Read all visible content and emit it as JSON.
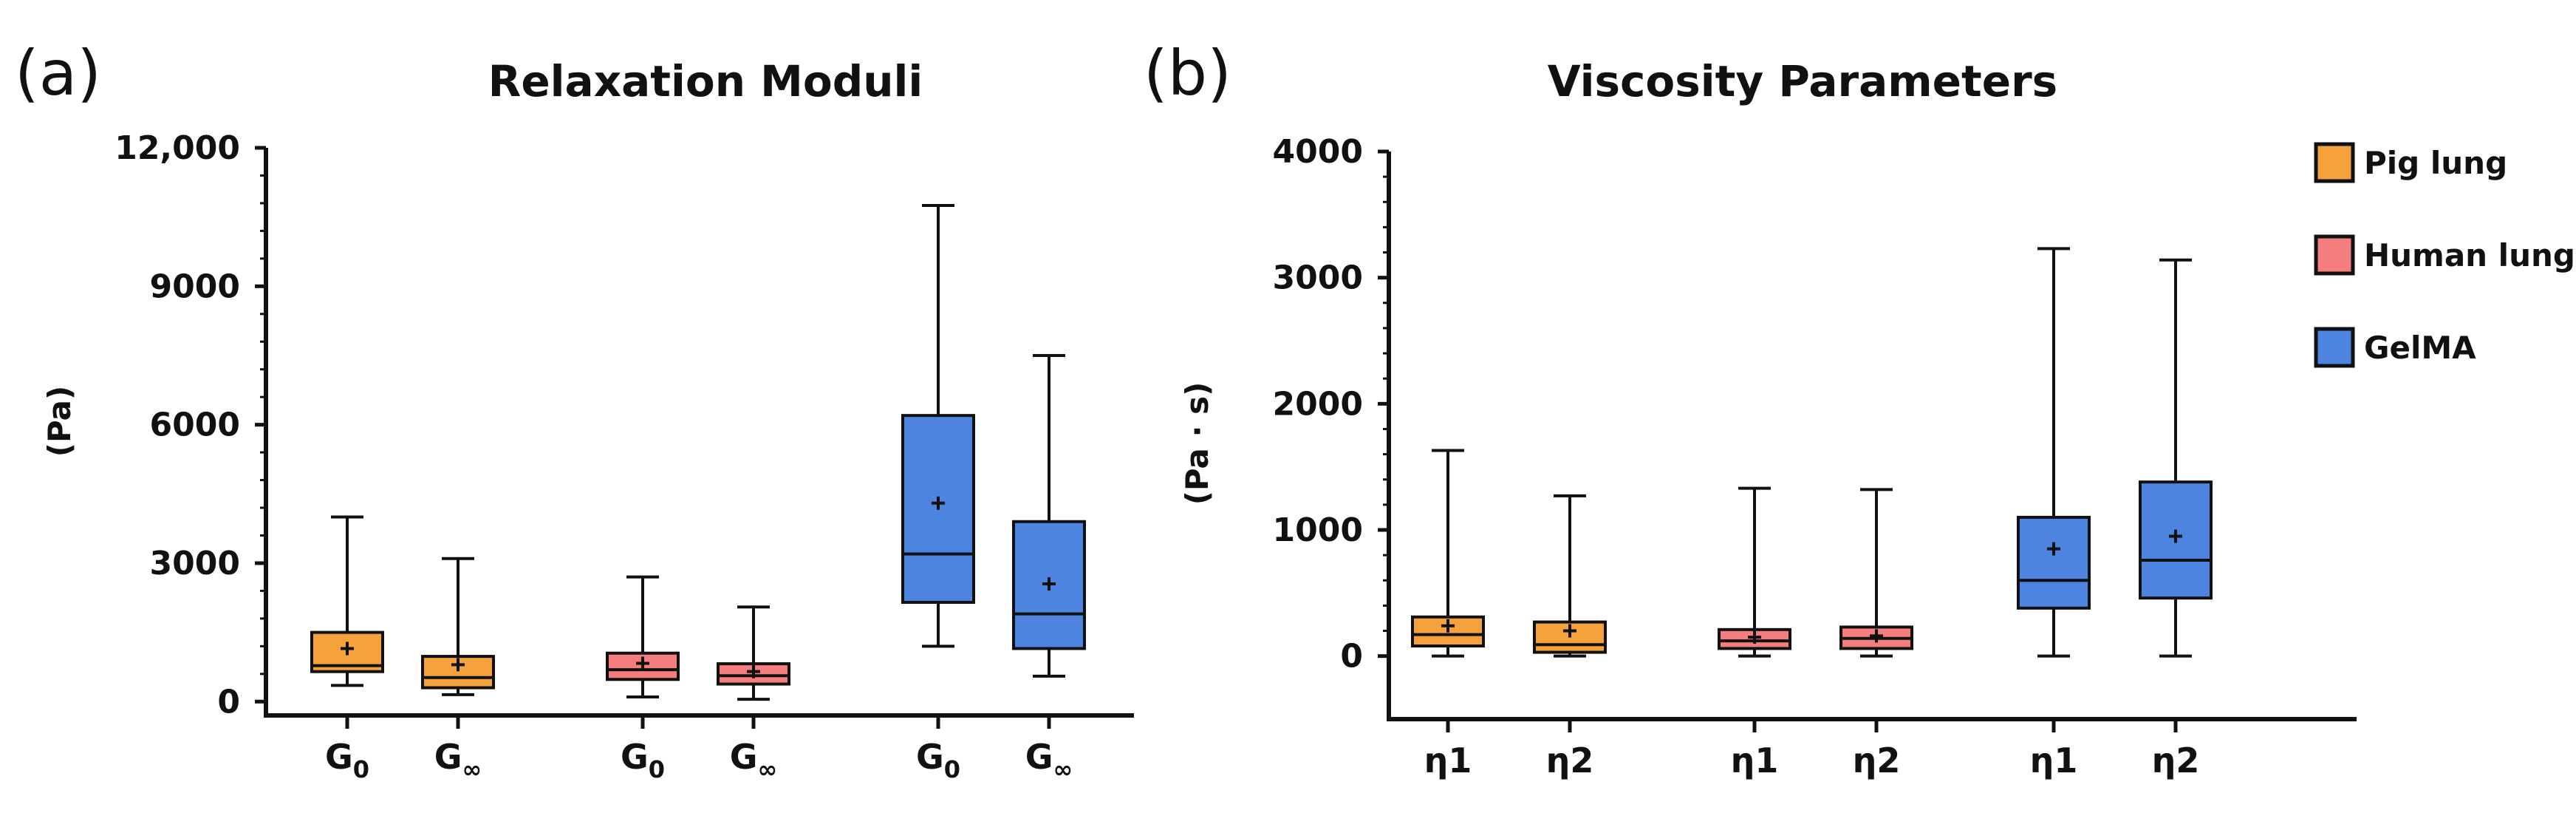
{
  "panel_labels": {
    "a": "(a)",
    "b": "(b)"
  },
  "legend": [
    {
      "name": "Pig lung",
      "color": "#F5A23C"
    },
    {
      "name": "Human lung",
      "color": "#F47E7E"
    },
    {
      "name": "GelMA",
      "color": "#4C84E0"
    }
  ],
  "chart_data": [
    {
      "type": "box",
      "title": "Relaxation Moduli",
      "xlabel": "",
      "ylabel": "(Pa)",
      "ylim": [
        -300,
        12000
      ],
      "yticks": [
        0,
        3000,
        6000,
        9000,
        12000
      ],
      "ytick_labels": [
        "0",
        "3000",
        "6000",
        "9000",
        "12,000"
      ],
      "boxes": [
        {
          "label_main": "G",
          "label_sub": "0",
          "group": "Pig lung",
          "color": "#F5A23C",
          "min": 350,
          "q1": 650,
          "median": 780,
          "q3": 1500,
          "max": 4000,
          "mean": 1150
        },
        {
          "label_main": "G",
          "label_sub": "∞",
          "group": "Pig lung",
          "color": "#F5A23C",
          "min": 150,
          "q1": 300,
          "median": 520,
          "q3": 980,
          "max": 3100,
          "mean": 800
        },
        {
          "label_main": "G",
          "label_sub": "0",
          "group": "Human lung",
          "color": "#F47E7E",
          "min": 100,
          "q1": 480,
          "median": 690,
          "q3": 1050,
          "max": 2700,
          "mean": 830
        },
        {
          "label_main": "G",
          "label_sub": "∞",
          "group": "Human lung",
          "color": "#F47E7E",
          "min": 50,
          "q1": 380,
          "median": 560,
          "q3": 820,
          "max": 2050,
          "mean": 650
        },
        {
          "label_main": "G",
          "label_sub": "0",
          "group": "GelMA",
          "color": "#4C84E0",
          "min": 1200,
          "q1": 2150,
          "median": 3200,
          "q3": 6200,
          "max": 10750,
          "mean": 4300
        },
        {
          "label_main": "G",
          "label_sub": "∞",
          "group": "GelMA",
          "color": "#4C84E0",
          "min": 550,
          "q1": 1150,
          "median": 1900,
          "q3": 3900,
          "max": 7500,
          "mean": 2550
        }
      ]
    },
    {
      "type": "box",
      "title": "Viscosity Parameters",
      "xlabel": "",
      "ylabel": "(Pa · s)",
      "ylim": [
        -500,
        4000
      ],
      "yticks": [
        0,
        1000,
        2000,
        3000,
        4000
      ],
      "ytick_labels": [
        "0",
        "1000",
        "2000",
        "3000",
        "4000"
      ],
      "boxes": [
        {
          "label_main": "η1",
          "label_sub": "",
          "group": "Pig lung",
          "color": "#F5A23C",
          "min": 0,
          "q1": 80,
          "median": 170,
          "q3": 310,
          "max": 1630,
          "mean": 240
        },
        {
          "label_main": "η2",
          "label_sub": "",
          "group": "Pig lung",
          "color": "#F5A23C",
          "min": 0,
          "q1": 30,
          "median": 90,
          "q3": 270,
          "max": 1270,
          "mean": 200
        },
        {
          "label_main": "η1",
          "label_sub": "",
          "group": "Human lung",
          "color": "#F47E7E",
          "min": 0,
          "q1": 60,
          "median": 120,
          "q3": 210,
          "max": 1330,
          "mean": 150
        },
        {
          "label_main": "η2",
          "label_sub": "",
          "group": "Human lung",
          "color": "#F47E7E",
          "min": 0,
          "q1": 60,
          "median": 140,
          "q3": 230,
          "max": 1320,
          "mean": 160
        },
        {
          "label_main": "η1",
          "label_sub": "",
          "group": "GelMA",
          "color": "#4C84E0",
          "min": 0,
          "q1": 380,
          "median": 600,
          "q3": 1100,
          "max": 3230,
          "mean": 850
        },
        {
          "label_main": "η2",
          "label_sub": "",
          "group": "GelMA",
          "color": "#4C84E0",
          "min": 0,
          "q1": 460,
          "median": 760,
          "q3": 1380,
          "max": 3140,
          "mean": 950
        }
      ]
    }
  ]
}
